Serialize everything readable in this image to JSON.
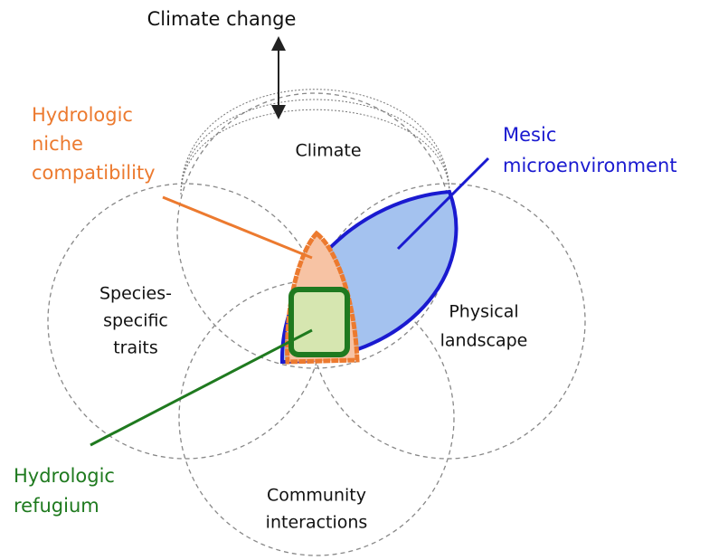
{
  "title": "Climate change",
  "labels": {
    "climate": [
      "Climate"
    ],
    "species": [
      "Species-",
      "specific",
      "traits"
    ],
    "landscape": [
      "Physical",
      "landscape"
    ],
    "community": [
      "Community",
      "interactions"
    ],
    "niche": [
      "Hydrologic",
      "niche",
      "compatibility"
    ],
    "mesic": [
      "Mesic",
      "microenvironment"
    ],
    "refugium": [
      "Hydrologic",
      "refugium"
    ]
  }
}
